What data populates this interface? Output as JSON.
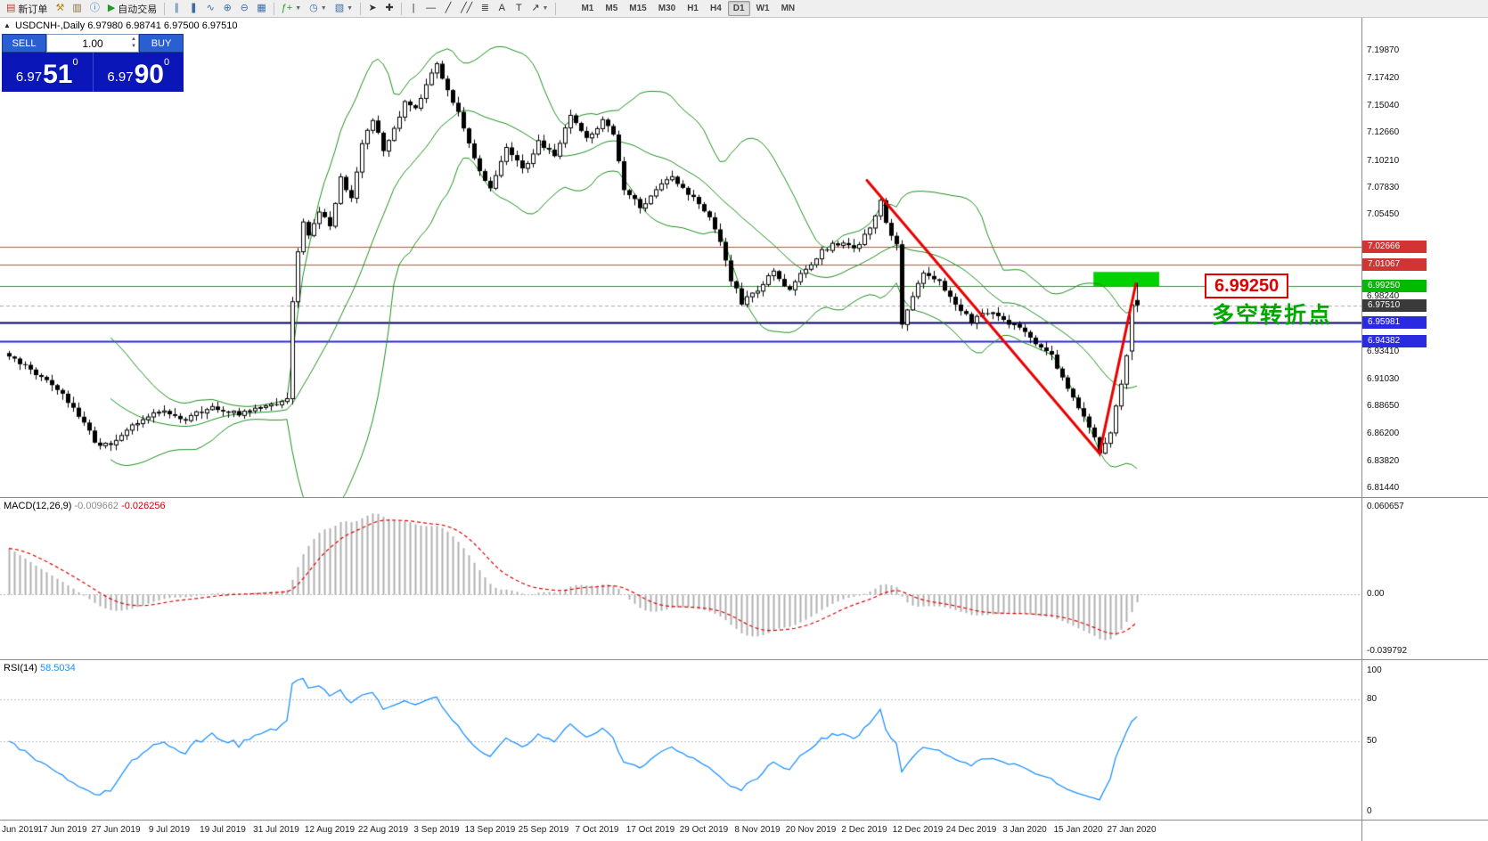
{
  "window": {
    "collapse_arrow": "▲"
  },
  "toolbar": {
    "groups": [
      {
        "buttons": [
          {
            "name": "new-order",
            "icon": "▤",
            "icon_color": "#c0392b",
            "label": "新订单"
          },
          {
            "name": "metaeditor",
            "icon": "⚒",
            "icon_color": "#b8860b"
          },
          {
            "name": "market",
            "icon": "▥",
            "icon_color": "#8a6d3b"
          },
          {
            "name": "help-info",
            "icon": "ⓘ",
            "icon_color": "#2a7ab8"
          },
          {
            "name": "auto-trading",
            "icon": "▶",
            "icon_color": "#1e9e28",
            "label": "自动交易"
          }
        ]
      },
      {
        "buttons": [
          {
            "name": "bars-chart",
            "icon": "∥",
            "icon_color": "#3a6ea5"
          },
          {
            "name": "candlestick-chart",
            "icon": "❚",
            "icon_color": "#3a6ea5"
          },
          {
            "name": "line-chart",
            "icon": "∿",
            "icon_color": "#3a6ea5"
          },
          {
            "name": "zoom-in",
            "icon": "⊕",
            "icon_color": "#3a6ea5"
          },
          {
            "name": "zoom-out",
            "icon": "⊖",
            "icon_color": "#3a6ea5"
          },
          {
            "name": "tile-windows",
            "icon": "▦",
            "icon_color": "#3a6ea5"
          }
        ]
      },
      {
        "buttons": [
          {
            "name": "indicators-list",
            "icon": "ƒ+",
            "icon_color": "#1e9e28",
            "caret": true
          },
          {
            "name": "periods",
            "icon": "◷",
            "icon_color": "#3a6ea5",
            "caret": true
          },
          {
            "name": "templates",
            "icon": "▧",
            "icon_color": "#3a6ea5",
            "caret": true
          }
        ]
      },
      {
        "buttons": [
          {
            "name": "cursor",
            "icon": "➤",
            "icon_color": "#333333"
          },
          {
            "name": "crosshair",
            "icon": "✚",
            "icon_color": "#333333"
          }
        ]
      },
      {
        "buttons": [
          {
            "name": "vertical-line",
            "icon": "|",
            "icon_color": "#333333"
          },
          {
            "name": "horizontal-line",
            "icon": "—",
            "icon_color": "#333333"
          },
          {
            "name": "trendline",
            "icon": "╱",
            "icon_color": "#333333"
          },
          {
            "name": "equidistant-channel",
            "icon": "╱╱",
            "icon_color": "#333333"
          },
          {
            "name": "fibonacci-retracement",
            "icon": "≣",
            "icon_color": "#333333"
          },
          {
            "name": "text",
            "icon": "A",
            "icon_color": "#333333"
          },
          {
            "name": "text-label",
            "icon": "T",
            "icon_color": "#333333"
          },
          {
            "name": "arrow-objects",
            "icon": "↗",
            "icon_color": "#333333",
            "caret": true
          }
        ]
      },
      {
        "timeframes": true,
        "buttons": [
          {
            "name": "tf-m1",
            "label": "M1"
          },
          {
            "name": "tf-m5",
            "label": "M5"
          },
          {
            "name": "tf-m15",
            "label": "M15"
          },
          {
            "name": "tf-m30",
            "label": "M30"
          },
          {
            "name": "tf-h1",
            "label": "H1"
          },
          {
            "name": "tf-h4",
            "label": "H4"
          },
          {
            "name": "tf-d1",
            "label": "D1",
            "active": true
          },
          {
            "name": "tf-w1",
            "label": "W1"
          },
          {
            "name": "tf-mn",
            "label": "MN"
          }
        ]
      }
    ]
  },
  "one_click": {
    "sell_label": "SELL",
    "buy_label": "BUY",
    "volume": "1.00",
    "sell_price": {
      "base": "6.97",
      "pips": "51",
      "sup": "0"
    },
    "buy_price": {
      "base": "6.97",
      "pips": "90",
      "sup": "0"
    }
  },
  "chart": {
    "ohlc_label": "USDCNH-,Daily  6.97980 6.98741 6.97500 6.97510"
  },
  "chart_data": {
    "type": "candlestick",
    "symbol": "USDCNH-",
    "period": "Daily",
    "open": "6.97980",
    "high": "6.98741",
    "low": "6.97500",
    "close": "6.97510",
    "price_range": {
      "top": 7.2106,
      "bottom": 6.8144
    },
    "price_axis_ticks": [
      "7.19870",
      "7.17420",
      "7.15040",
      "7.12660",
      "7.10210",
      "7.07830",
      "7.05450",
      "6.98240",
      "6.93410",
      "6.91030",
      "6.88650",
      "6.86200",
      "6.83820",
      "6.81440"
    ],
    "special_price_labels": [
      {
        "name": "resistance-level-label",
        "price": "7.02666",
        "bg": "#d23434"
      },
      {
        "name": "resistance-level-label",
        "price": "7.01067",
        "bg": "#d23434"
      },
      {
        "name": "target-level-label",
        "price": "6.99250",
        "bg": "#00bb00"
      },
      {
        "name": "current-price-label",
        "price": "6.97510",
        "bg": "#3a3a3a"
      },
      {
        "name": "support-level-label",
        "price": "6.95981",
        "bg": "#2a2ae0"
      },
      {
        "name": "support-level-label",
        "price": "6.94382",
        "bg": "#2a2ae0"
      }
    ],
    "price_levels": [
      {
        "price": 7.02666,
        "color": "#e23c3c",
        "width": 1
      },
      {
        "price": 7.01067,
        "color": "#e23c3c",
        "width": 1
      },
      {
        "price": 6.9925,
        "color": "#00b400",
        "width": 1
      },
      {
        "price": 6.9751,
        "color": "#aaaaaa",
        "width": 1,
        "dash": true
      },
      {
        "price": 6.95981,
        "color": "#000066",
        "width": 2
      },
      {
        "price": 6.94382,
        "color": "#2a2ae0",
        "width": 2
      }
    ],
    "candles_n": 212,
    "close_anchors": [
      [
        0,
        6.93
      ],
      [
        4,
        6.918
      ],
      [
        8,
        6.905
      ],
      [
        12,
        6.885
      ],
      [
        16,
        6.856
      ],
      [
        19,
        6.85
      ],
      [
        23,
        6.868
      ],
      [
        28,
        6.882
      ],
      [
        33,
        6.876
      ],
      [
        38,
        6.884
      ],
      [
        43,
        6.88
      ],
      [
        48,
        6.886
      ],
      [
        52,
        6.892
      ],
      [
        53,
        6.978
      ],
      [
        54,
        7.02
      ],
      [
        55,
        7.048
      ],
      [
        56,
        7.038
      ],
      [
        58,
        7.058
      ],
      [
        60,
        7.046
      ],
      [
        62,
        7.086
      ],
      [
        64,
        7.07
      ],
      [
        66,
        7.118
      ],
      [
        68,
        7.138
      ],
      [
        70,
        7.112
      ],
      [
        72,
        7.13
      ],
      [
        74,
        7.154
      ],
      [
        76,
        7.146
      ],
      [
        78,
        7.17
      ],
      [
        80,
        7.186
      ],
      [
        82,
        7.166
      ],
      [
        84,
        7.144
      ],
      [
        86,
        7.118
      ],
      [
        88,
        7.092
      ],
      [
        90,
        7.08
      ],
      [
        93,
        7.112
      ],
      [
        96,
        7.094
      ],
      [
        99,
        7.118
      ],
      [
        102,
        7.106
      ],
      [
        105,
        7.142
      ],
      [
        108,
        7.12
      ],
      [
        111,
        7.136
      ],
      [
        113,
        7.126
      ],
      [
        115,
        7.078
      ],
      [
        118,
        7.062
      ],
      [
        121,
        7.076
      ],
      [
        124,
        7.09
      ],
      [
        127,
        7.072
      ],
      [
        130,
        7.06
      ],
      [
        133,
        7.032
      ],
      [
        135,
        6.998
      ],
      [
        137,
        6.978
      ],
      [
        140,
        6.988
      ],
      [
        143,
        7.006
      ],
      [
        146,
        6.988
      ],
      [
        149,
        7.008
      ],
      [
        152,
        7.022
      ],
      [
        155,
        7.03
      ],
      [
        158,
        7.024
      ],
      [
        161,
        7.042
      ],
      [
        163,
        7.068
      ],
      [
        164,
        7.046
      ],
      [
        166,
        7.03
      ],
      [
        167,
        6.958
      ],
      [
        169,
        6.984
      ],
      [
        171,
        7.002
      ],
      [
        174,
        6.996
      ],
      [
        177,
        6.976
      ],
      [
        180,
        6.962
      ],
      [
        183,
        6.97
      ],
      [
        186,
        6.962
      ],
      [
        189,
        6.955
      ],
      [
        192,
        6.942
      ],
      [
        195,
        6.93
      ],
      [
        198,
        6.904
      ],
      [
        200,
        6.886
      ],
      [
        202,
        6.868
      ],
      [
        204,
        6.846
      ],
      [
        206,
        6.864
      ],
      [
        208,
        6.906
      ],
      [
        209,
        6.932
      ],
      [
        210,
        6.962
      ],
      [
        211,
        6.975
      ]
    ],
    "bollinger": {
      "period": 20,
      "deviation": 2,
      "color": "#1f8f1f"
    },
    "trend_lines": [
      {
        "i1": 160.5,
        "p1": 7.085,
        "i2": 204,
        "p2": 6.845,
        "color": "#e80000",
        "width": 3
      },
      {
        "i1": 204,
        "p1": 6.845,
        "i2": 210.8,
        "p2": 6.994,
        "color": "#e80000",
        "width": 3
      }
    ],
    "highlight_rect": {
      "i1": 203.2,
      "i2": 215.5,
      "p_top": 7.0045,
      "p_bottom": 6.9918,
      "color": "#00d200"
    },
    "callout_label": "6.99250",
    "callout_color": "#e00000",
    "annotation": {
      "text": "多空转折点",
      "color": "#00a800"
    },
    "macd": {
      "label": "MACD(12,26,9)",
      "value_main": "-0.009662",
      "value_signal": "-0.026256",
      "axis_ticks": [
        "0.060657",
        "0.00",
        "-0.039792"
      ],
      "range_min": -0.0398,
      "range_max": 0.0607,
      "histogram_color": "#b0b0b0",
      "signal_color": "#e00000"
    },
    "rsi": {
      "label": "RSI(14)",
      "value": "58.5034",
      "axis_ticks": [
        "100",
        "80",
        "50",
        "0"
      ],
      "levels": [
        80,
        50
      ],
      "line_color": "#1e90ff"
    },
    "x_axis_dates": [
      "Jun 2019",
      "17 Jun 2019",
      "27 Jun 2019",
      "9 Jul 2019",
      "19 Jul 2019",
      "31 Jul 2019",
      "12 Aug 2019",
      "22 Aug 2019",
      "3 Sep 2019",
      "13 Sep 2019",
      "25 Sep 2019",
      "7 Oct 2019",
      "17 Oct 2019",
      "29 Oct 2019",
      "8 Nov 2019",
      "20 Nov 2019",
      "2 Dec 2019",
      "12 Dec 2019",
      "24 Dec 2019",
      "3 Jan 2020",
      "15 Jan 2020",
      "27 Jan 2020"
    ]
  }
}
